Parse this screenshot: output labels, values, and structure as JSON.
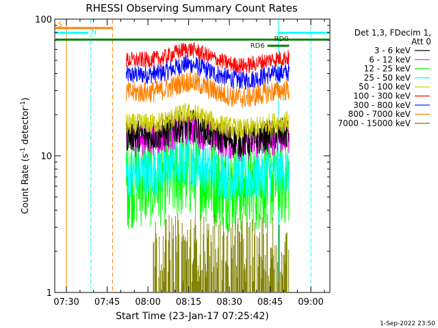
{
  "chart_data": {
    "type": "line",
    "title": "RHESSI Observing Summary Count Rates",
    "ylabel": "Count Rate (s",
    "ylabel_sup": "-1",
    "ylabel_tail": " detector",
    "ylabel_sup2": "-1",
    "ylabel_end": ")",
    "xlabel": "Start Time (23-Jan-17 07:25:42)",
    "timestamp": "1-Sep-2022 23:50",
    "y_scale": "log",
    "ylim": [
      1,
      100
    ],
    "y_ticks": [
      {
        "value": 1,
        "label": "1"
      },
      {
        "value": 10,
        "label": "10"
      },
      {
        "value": 100,
        "label": "100"
      }
    ],
    "xlim": [
      "07:25:42",
      "09:07:00"
    ],
    "x_ticks": [
      "07:30",
      "07:45",
      "08:00",
      "08:15",
      "08:30",
      "08:45",
      "09:00"
    ],
    "data_start": "07:52",
    "data_end": "08:52",
    "legend_header": [
      "Det 1,3, FDecim 1,",
      "Att 0"
    ],
    "series": [
      {
        "name": "3 - 6 keV",
        "color": "#000000",
        "level": 14,
        "noise": 0.12
      },
      {
        "name": "6 - 12 keV",
        "color": "#ff00ff",
        "level": 13,
        "noise": 0.12
      },
      {
        "name": "12 - 25 keV",
        "color": "#00ff00",
        "level": 6.5,
        "noise": 0.35
      },
      {
        "name": "25 - 50 keV",
        "color": "#00ffff",
        "level": 7.5,
        "noise": 0.18
      },
      {
        "name": "50 - 100 keV",
        "color": "#cccc00",
        "level": 17,
        "noise": 0.08
      },
      {
        "name": "100 - 300 keV",
        "color": "#ff0000",
        "level": 50,
        "noise": 0.06
      },
      {
        "name": "300 - 800 keV",
        "color": "#0000ff",
        "level": 39,
        "noise": 0.07
      },
      {
        "name": "800 - 7000 keV",
        "color": "#ff8000",
        "level": 29,
        "noise": 0.08
      },
      {
        "name": "7000 - 15000 keV",
        "color": "#808000",
        "level": 1.5,
        "noise": 0.5
      }
    ],
    "markers": [
      {
        "label": "S",
        "time": "07:30",
        "color": "#ff8000",
        "style": "solid"
      },
      {
        "label": "",
        "time": "07:47",
        "color": "#ff8000",
        "style": "dashed"
      },
      {
        "label": "N",
        "time": "07:39",
        "color": "#00ffff",
        "style": "dashed"
      },
      {
        "label": "",
        "time": "08:48",
        "color": "#00ffff",
        "style": "solid"
      },
      {
        "label": "",
        "time": "09:00",
        "color": "#00ffff",
        "style": "dashed"
      }
    ],
    "bars": [
      {
        "label": "S",
        "color": "#ff8000",
        "from": "07:25:42",
        "to": "07:47"
      },
      {
        "label": "N",
        "color": "#00ffff",
        "from": "07:25:42",
        "to": "07:38"
      },
      {
        "label": "",
        "color": "#00ffff",
        "from": "08:48",
        "to": "09:07"
      },
      {
        "label": "",
        "color": "#008000",
        "from": "07:25:42",
        "to": "09:07"
      },
      {
        "label": "RD0",
        "color": "#008000",
        "from": "08:46",
        "to": "08:56"
      },
      {
        "label": "RD6",
        "color": "#008000",
        "from": "08:44",
        "to": "08:52"
      }
    ]
  }
}
